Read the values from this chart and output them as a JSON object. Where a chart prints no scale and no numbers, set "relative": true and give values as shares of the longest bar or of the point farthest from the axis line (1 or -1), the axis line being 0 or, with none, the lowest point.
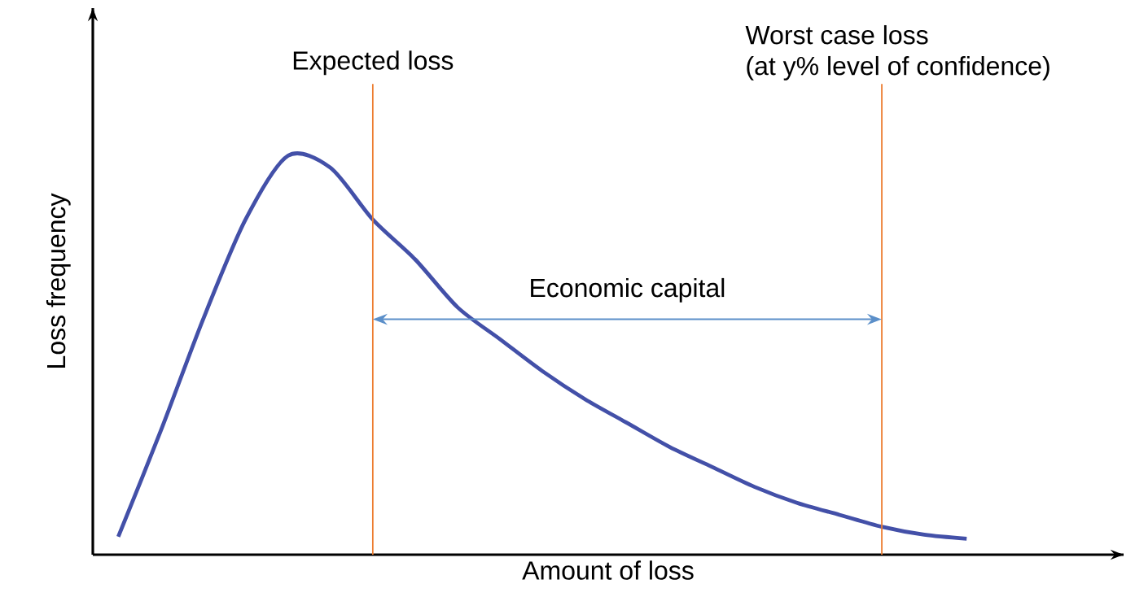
{
  "chart_data": {
    "type": "line",
    "relative": true,
    "xlabel": "Amount of loss",
    "ylabel": "Loss frequency",
    "categories": [
      null,
      null,
      null,
      null,
      null,
      null,
      null,
      null,
      null,
      null,
      null,
      null,
      null,
      null,
      null,
      null,
      null,
      null,
      null,
      null,
      null
    ],
    "series": [
      {
        "color": "#4350a8",
        "values": [
          0.045,
          0.31,
          0.59,
          0.84,
          1.0,
          0.97,
          0.84,
          0.74,
          0.62,
          0.54,
          0.46,
          0.39,
          0.33,
          0.27,
          0.22,
          0.17,
          0.13,
          0.1,
          0.07,
          0.05,
          0.04
        ]
      }
    ],
    "annotations": [
      "Expected loss",
      "Worst case loss\n(at y% level of confidence)",
      "Economic capital"
    ]
  }
}
